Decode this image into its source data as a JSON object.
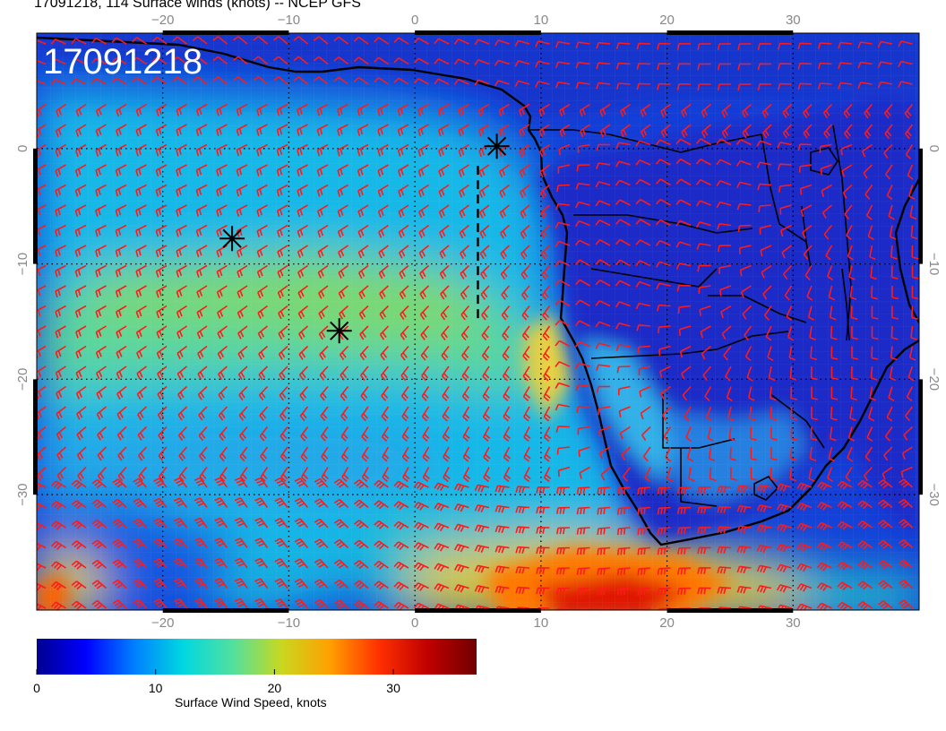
{
  "header": {
    "title": "17091218, 114 Surface winds (knots) -- NCEP GFS",
    "stamp": "17091218"
  },
  "map": {
    "variable": "Surface wind speed",
    "lon_range": [
      -30,
      40
    ],
    "lat_range": [
      -40,
      10
    ],
    "lon_ticks": [
      -20,
      -10,
      0,
      10,
      20,
      30
    ],
    "lat_ticks": [
      0,
      -10,
      -20,
      -30
    ],
    "lon_tick_labels": [
      "−20",
      "−10",
      "0",
      "10",
      "20",
      "30"
    ],
    "lat_tick_labels": [
      "0",
      "−10",
      "−20",
      "−30"
    ],
    "barb_color": "#ff1a1a",
    "coast_color": "#000000",
    "markers": [
      {
        "lon": 6.5,
        "lat": 0.2,
        "symbol": "asterisk"
      },
      {
        "lon": -14.5,
        "lat": -7.8,
        "symbol": "asterisk"
      },
      {
        "lon": -6.0,
        "lat": -15.8,
        "symbol": "asterisk"
      }
    ],
    "dashed_track": [
      [
        5.0,
        -1.5
      ],
      [
        5.0,
        -15.0
      ]
    ]
  },
  "colorbar": {
    "title": "Surface Wind Speed, knots",
    "range": [
      0,
      37
    ],
    "ticks": [
      0,
      10,
      20,
      30
    ],
    "tick_labels": [
      "0",
      "10",
      "20",
      "30"
    ],
    "colors": [
      "#00008f",
      "#0000ff",
      "#0080ff",
      "#00d8e0",
      "#50e0a0",
      "#c8d820",
      "#ffa000",
      "#ff3000",
      "#c00000",
      "#700000"
    ]
  }
}
